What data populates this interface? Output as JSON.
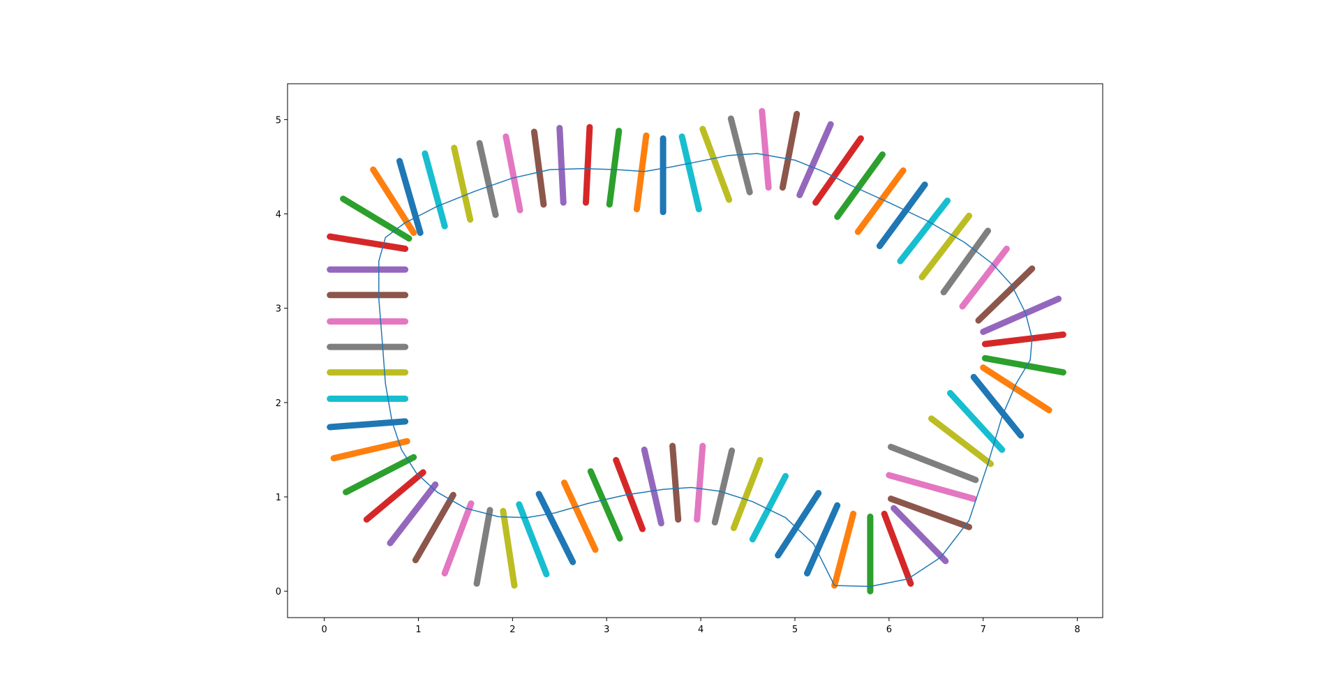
{
  "chart_data": {
    "type": "line",
    "title": "",
    "xlabel": "",
    "ylabel": "",
    "xlim": [
      -0.39,
      8.27
    ],
    "ylim": [
      -0.28,
      5.38
    ],
    "xticks": [
      0,
      1,
      2,
      3,
      4,
      5,
      6,
      7,
      8
    ],
    "yticks": [
      0,
      1,
      2,
      3,
      4,
      5
    ],
    "grid": false,
    "legend": "none",
    "curve": {
      "color": "#1f77b4",
      "points": [
        [
          5.42,
          0.06
        ],
        [
          5.8,
          0.05
        ],
        [
          6.2,
          0.13
        ],
        [
          6.55,
          0.36
        ],
        [
          6.85,
          0.75
        ],
        [
          7.05,
          1.35
        ],
        [
          7.2,
          1.85
        ],
        [
          7.35,
          2.2
        ],
        [
          7.5,
          2.45
        ],
        [
          7.52,
          2.68
        ],
        [
          7.45,
          2.95
        ],
        [
          7.3,
          3.25
        ],
        [
          7.1,
          3.47
        ],
        [
          6.8,
          3.7
        ],
        [
          6.4,
          3.93
        ],
        [
          6.0,
          4.12
        ],
        [
          5.6,
          4.3
        ],
        [
          5.3,
          4.45
        ],
        [
          5.0,
          4.57
        ],
        [
          4.6,
          4.64
        ],
        [
          4.3,
          4.62
        ],
        [
          4.0,
          4.56
        ],
        [
          3.7,
          4.5
        ],
        [
          3.4,
          4.45
        ],
        [
          3.1,
          4.47
        ],
        [
          2.75,
          4.48
        ],
        [
          2.4,
          4.47
        ],
        [
          2.0,
          4.38
        ],
        [
          1.6,
          4.24
        ],
        [
          1.2,
          4.08
        ],
        [
          0.85,
          3.9
        ],
        [
          0.65,
          3.75
        ],
        [
          0.58,
          3.5
        ],
        [
          0.58,
          3.1
        ],
        [
          0.62,
          2.6
        ],
        [
          0.65,
          2.2
        ],
        [
          0.72,
          1.8
        ],
        [
          0.82,
          1.5
        ],
        [
          0.98,
          1.25
        ],
        [
          1.2,
          1.05
        ],
        [
          1.5,
          0.88
        ],
        [
          1.85,
          0.79
        ],
        [
          2.15,
          0.78
        ],
        [
          2.45,
          0.83
        ],
        [
          2.8,
          0.93
        ],
        [
          3.2,
          1.02
        ],
        [
          3.6,
          1.08
        ],
        [
          3.9,
          1.1
        ],
        [
          4.2,
          1.06
        ],
        [
          4.55,
          0.95
        ],
        [
          4.9,
          0.78
        ],
        [
          5.2,
          0.5
        ],
        [
          5.42,
          0.06
        ]
      ]
    },
    "segments": [
      {
        "x": [
          5.42,
          5.62
        ],
        "y": [
          0.06,
          0.82
        ],
        "color": "#ff7f0e"
      },
      {
        "x": [
          5.8,
          5.8
        ],
        "y": [
          0.0,
          0.79
        ],
        "color": "#2ca02c"
      },
      {
        "x": [
          5.95,
          6.23
        ],
        "y": [
          0.82,
          0.08
        ],
        "color": "#d62728"
      },
      {
        "x": [
          6.05,
          6.6
        ],
        "y": [
          0.88,
          0.32
        ],
        "color": "#9467bd"
      },
      {
        "x": [
          6.02,
          6.85
        ],
        "y": [
          0.98,
          0.68
        ],
        "color": "#8c564b"
      },
      {
        "x": [
          6.0,
          6.9
        ],
        "y": [
          1.23,
          0.98
        ],
        "color": "#e377c2"
      },
      {
        "x": [
          6.02,
          6.92
        ],
        "y": [
          1.53,
          1.18
        ],
        "color": "#7f7f7f"
      },
      {
        "x": [
          6.45,
          7.08
        ],
        "y": [
          1.83,
          1.35
        ],
        "color": "#bcbd22"
      },
      {
        "x": [
          6.65,
          7.2
        ],
        "y": [
          2.1,
          1.5
        ],
        "color": "#17becf"
      },
      {
        "x": [
          6.9,
          7.4
        ],
        "y": [
          2.27,
          1.65
        ],
        "color": "#1f77b4"
      },
      {
        "x": [
          7.0,
          7.7
        ],
        "y": [
          2.37,
          1.92
        ],
        "color": "#ff7f0e"
      },
      {
        "x": [
          7.02,
          7.85
        ],
        "y": [
          2.47,
          2.32
        ],
        "color": "#2ca02c"
      },
      {
        "x": [
          7.02,
          7.85
        ],
        "y": [
          2.62,
          2.72
        ],
        "color": "#d62728"
      },
      {
        "x": [
          7.0,
          7.8
        ],
        "y": [
          2.75,
          3.1
        ],
        "color": "#9467bd"
      },
      {
        "x": [
          6.95,
          7.52
        ],
        "y": [
          2.87,
          3.42
        ],
        "color": "#8c564b"
      },
      {
        "x": [
          6.78,
          7.25
        ],
        "y": [
          3.02,
          3.63
        ],
        "color": "#e377c2"
      },
      {
        "x": [
          6.58,
          7.05
        ],
        "y": [
          3.17,
          3.82
        ],
        "color": "#7f7f7f"
      },
      {
        "x": [
          6.35,
          6.85
        ],
        "y": [
          3.33,
          3.98
        ],
        "color": "#bcbd22"
      },
      {
        "x": [
          6.12,
          6.62
        ],
        "y": [
          3.5,
          4.14
        ],
        "color": "#17becf"
      },
      {
        "x": [
          5.9,
          6.38
        ],
        "y": [
          3.66,
          4.31
        ],
        "color": "#1f77b4"
      },
      {
        "x": [
          5.67,
          6.15
        ],
        "y": [
          3.81,
          4.46
        ],
        "color": "#ff7f0e"
      },
      {
        "x": [
          5.45,
          5.93
        ],
        "y": [
          3.97,
          4.63
        ],
        "color": "#2ca02c"
      },
      {
        "x": [
          5.22,
          5.7
        ],
        "y": [
          4.12,
          4.8
        ],
        "color": "#d62728"
      },
      {
        "x": [
          5.05,
          5.38
        ],
        "y": [
          4.2,
          4.95
        ],
        "color": "#9467bd"
      },
      {
        "x": [
          4.87,
          5.02
        ],
        "y": [
          4.28,
          5.06
        ],
        "color": "#8c564b"
      },
      {
        "x": [
          4.65,
          4.72
        ],
        "y": [
          5.09,
          4.28
        ],
        "color": "#e377c2"
      },
      {
        "x": [
          4.32,
          4.52
        ],
        "y": [
          5.01,
          4.23
        ],
        "color": "#7f7f7f"
      },
      {
        "x": [
          4.02,
          4.3
        ],
        "y": [
          4.9,
          4.15
        ],
        "color": "#bcbd22"
      },
      {
        "x": [
          3.8,
          3.98
        ],
        "y": [
          4.82,
          4.05
        ],
        "color": "#17becf"
      },
      {
        "x": [
          3.6,
          3.6
        ],
        "y": [
          4.8,
          4.02
        ],
        "color": "#1f77b4"
      },
      {
        "x": [
          3.32,
          3.42
        ],
        "y": [
          4.05,
          4.83
        ],
        "color": "#ff7f0e"
      },
      {
        "x": [
          3.03,
          3.13
        ],
        "y": [
          4.1,
          4.88
        ],
        "color": "#2ca02c"
      },
      {
        "x": [
          2.78,
          2.82
        ],
        "y": [
          4.12,
          4.92
        ],
        "color": "#d62728"
      },
      {
        "x": [
          2.5,
          2.54
        ],
        "y": [
          4.91,
          4.12
        ],
        "color": "#9467bd"
      },
      {
        "x": [
          2.23,
          2.33
        ],
        "y": [
          4.87,
          4.1
        ],
        "color": "#8c564b"
      },
      {
        "x": [
          1.93,
          2.08
        ],
        "y": [
          4.82,
          4.04
        ],
        "color": "#e377c2"
      },
      {
        "x": [
          1.65,
          1.82
        ],
        "y": [
          4.75,
          3.99
        ],
        "color": "#7f7f7f"
      },
      {
        "x": [
          1.38,
          1.55
        ],
        "y": [
          4.7,
          3.94
        ],
        "color": "#bcbd22"
      },
      {
        "x": [
          1.07,
          1.28
        ],
        "y": [
          4.64,
          3.87
        ],
        "color": "#17becf"
      },
      {
        "x": [
          0.8,
          1.02
        ],
        "y": [
          4.56,
          3.8
        ],
        "color": "#1f77b4"
      },
      {
        "x": [
          0.52,
          0.95
        ],
        "y": [
          4.47,
          3.8
        ],
        "color": "#ff7f0e"
      },
      {
        "x": [
          0.2,
          0.9
        ],
        "y": [
          4.16,
          3.74
        ],
        "color": "#2ca02c"
      },
      {
        "x": [
          0.06,
          0.86
        ],
        "y": [
          3.76,
          3.63
        ],
        "color": "#d62728"
      },
      {
        "x": [
          0.06,
          0.86
        ],
        "y": [
          3.41,
          3.41
        ],
        "color": "#9467bd"
      },
      {
        "x": [
          0.06,
          0.86
        ],
        "y": [
          3.14,
          3.14
        ],
        "color": "#8c564b"
      },
      {
        "x": [
          0.06,
          0.86
        ],
        "y": [
          2.86,
          2.86
        ],
        "color": "#e377c2"
      },
      {
        "x": [
          0.06,
          0.86
        ],
        "y": [
          2.59,
          2.59
        ],
        "color": "#7f7f7f"
      },
      {
        "x": [
          0.06,
          0.86
        ],
        "y": [
          2.32,
          2.32
        ],
        "color": "#bcbd22"
      },
      {
        "x": [
          0.06,
          0.86
        ],
        "y": [
          2.04,
          2.04
        ],
        "color": "#17becf"
      },
      {
        "x": [
          0.06,
          0.86
        ],
        "y": [
          1.74,
          1.8
        ],
        "color": "#1f77b4"
      },
      {
        "x": [
          0.1,
          0.88
        ],
        "y": [
          1.41,
          1.59
        ],
        "color": "#ff7f0e"
      },
      {
        "x": [
          0.23,
          0.95
        ],
        "y": [
          1.05,
          1.42
        ],
        "color": "#2ca02c"
      },
      {
        "x": [
          0.45,
          1.05
        ],
        "y": [
          0.76,
          1.26
        ],
        "color": "#d62728"
      },
      {
        "x": [
          0.7,
          1.18
        ],
        "y": [
          0.51,
          1.13
        ],
        "color": "#9467bd"
      },
      {
        "x": [
          0.97,
          1.37
        ],
        "y": [
          0.33,
          1.02
        ],
        "color": "#8c564b"
      },
      {
        "x": [
          1.28,
          1.56
        ],
        "y": [
          0.19,
          0.93
        ],
        "color": "#e377c2"
      },
      {
        "x": [
          1.62,
          1.76
        ],
        "y": [
          0.08,
          0.86
        ],
        "color": "#7f7f7f"
      },
      {
        "x": [
          1.9,
          2.02
        ],
        "y": [
          0.85,
          0.06
        ],
        "color": "#bcbd22"
      },
      {
        "x": [
          2.07,
          2.36
        ],
        "y": [
          0.92,
          0.18
        ],
        "color": "#17becf"
      },
      {
        "x": [
          2.28,
          2.64
        ],
        "y": [
          1.03,
          0.31
        ],
        "color": "#1f77b4"
      },
      {
        "x": [
          2.55,
          2.88
        ],
        "y": [
          1.15,
          0.44
        ],
        "color": "#ff7f0e"
      },
      {
        "x": [
          2.83,
          3.14
        ],
        "y": [
          1.27,
          0.56
        ],
        "color": "#2ca02c"
      },
      {
        "x": [
          3.1,
          3.38
        ],
        "y": [
          1.39,
          0.66
        ],
        "color": "#d62728"
      },
      {
        "x": [
          3.4,
          3.58
        ],
        "y": [
          1.5,
          0.72
        ],
        "color": "#9467bd"
      },
      {
        "x": [
          3.7,
          3.76
        ],
        "y": [
          1.54,
          0.76
        ],
        "color": "#8c564b"
      },
      {
        "x": [
          3.96,
          4.02
        ],
        "y": [
          0.76,
          1.54
        ],
        "color": "#e377c2"
      },
      {
        "x": [
          4.15,
          4.33
        ],
        "y": [
          0.73,
          1.49
        ],
        "color": "#7f7f7f"
      },
      {
        "x": [
          4.35,
          4.63
        ],
        "y": [
          0.67,
          1.39
        ],
        "color": "#bcbd22"
      },
      {
        "x": [
          4.55,
          4.9
        ],
        "y": [
          0.55,
          1.22
        ],
        "color": "#17becf"
      },
      {
        "x": [
          4.82,
          5.25
        ],
        "y": [
          0.38,
          1.04
        ],
        "color": "#1f77b4"
      },
      {
        "x": [
          5.13,
          5.45
        ],
        "y": [
          0.19,
          0.91
        ],
        "color": "#1f77b4"
      }
    ]
  }
}
